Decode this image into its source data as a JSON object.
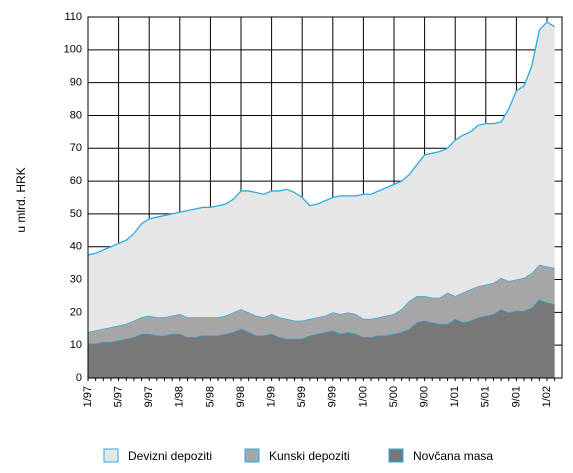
{
  "chart_data": {
    "type": "stacked_area",
    "ylabel": "u mlrd. HRK",
    "categories": [
      "1/97",
      null,
      null,
      null,
      "5/97",
      null,
      null,
      null,
      "9/97",
      null,
      null,
      null,
      "1/98",
      null,
      null,
      null,
      "5/98",
      null,
      null,
      null,
      "9/98",
      null,
      null,
      null,
      "1/99",
      null,
      null,
      null,
      "5/99",
      null,
      null,
      null,
      "9/99",
      null,
      null,
      null,
      "1/00",
      null,
      null,
      null,
      "5/00",
      null,
      null,
      null,
      "9/00",
      null,
      null,
      null,
      "1/01",
      null,
      null,
      null,
      "5/01",
      null,
      null,
      null,
      "9/01",
      null,
      null,
      null,
      "1/02",
      null
    ],
    "series": [
      {
        "name": "Devizni depoziti",
        "color": "#e6e6e6",
        "values": [
          23.5,
          23.5,
          24,
          24.5,
          25,
          25.5,
          26.5,
          28.5,
          29.5,
          30.5,
          31,
          31,
          31,
          32.5,
          33,
          33.5,
          33.5,
          34,
          34,
          34.5,
          36,
          37,
          37.5,
          37.5,
          37.5,
          38.5,
          39.5,
          39,
          37.5,
          34.5,
          34.5,
          35,
          35,
          36,
          35.5,
          36,
          38,
          38,
          38.5,
          39,
          39.5,
          39,
          38.5,
          40,
          43,
          44,
          44.5,
          44,
          47.5,
          48,
          48,
          49,
          49,
          48.5,
          47.5,
          52.5,
          57.5,
          58.5,
          63,
          71.5,
          74.5,
          73.5
        ]
      },
      {
        "name": "Kunski depoziti",
        "color": "#a6a6a6",
        "values": [
          3.5,
          4,
          4,
          4.5,
          4.5,
          4.5,
          5,
          5,
          5.5,
          5.5,
          5.5,
          5.5,
          6,
          6,
          6,
          5.5,
          5.5,
          5.5,
          5.5,
          6,
          6,
          6,
          6,
          5.5,
          6,
          6,
          6,
          5.5,
          5.5,
          5,
          5,
          5,
          5.5,
          6,
          6,
          6,
          5.5,
          5.5,
          5.5,
          6,
          6,
          7,
          8.5,
          8,
          7.5,
          7.5,
          8,
          9.5,
          7,
          9,
          9.5,
          9.5,
          9.5,
          9.5,
          9.5,
          9.5,
          9.5,
          10,
          10.5,
          10.5,
          11,
          11
        ]
      },
      {
        "name": "Novčana masa",
        "color": "#787878",
        "values": [
          10.5,
          10.5,
          11,
          11,
          11.5,
          12,
          12.5,
          13.5,
          13.5,
          13,
          13,
          13.5,
          13.5,
          12.5,
          12.5,
          13,
          13,
          13,
          13.5,
          14,
          15,
          14,
          13,
          13,
          13.5,
          12.5,
          12,
          12,
          12,
          13,
          13.5,
          14,
          14.5,
          13.5,
          14,
          13.5,
          12.5,
          12.5,
          13,
          13,
          13.5,
          14,
          15,
          17,
          17.5,
          17,
          16.5,
          16.5,
          18,
          17,
          17.5,
          18.5,
          19,
          19.5,
          21,
          20,
          20.5,
          20.5,
          21.5,
          24,
          23,
          22.5
        ]
      }
    ],
    "line_color": "#29abe2",
    "ylim": [
      0,
      110
    ],
    "yticks": [
      0,
      10,
      20,
      30,
      40,
      50,
      60,
      70,
      80,
      90,
      100,
      110
    ],
    "grid": true
  }
}
